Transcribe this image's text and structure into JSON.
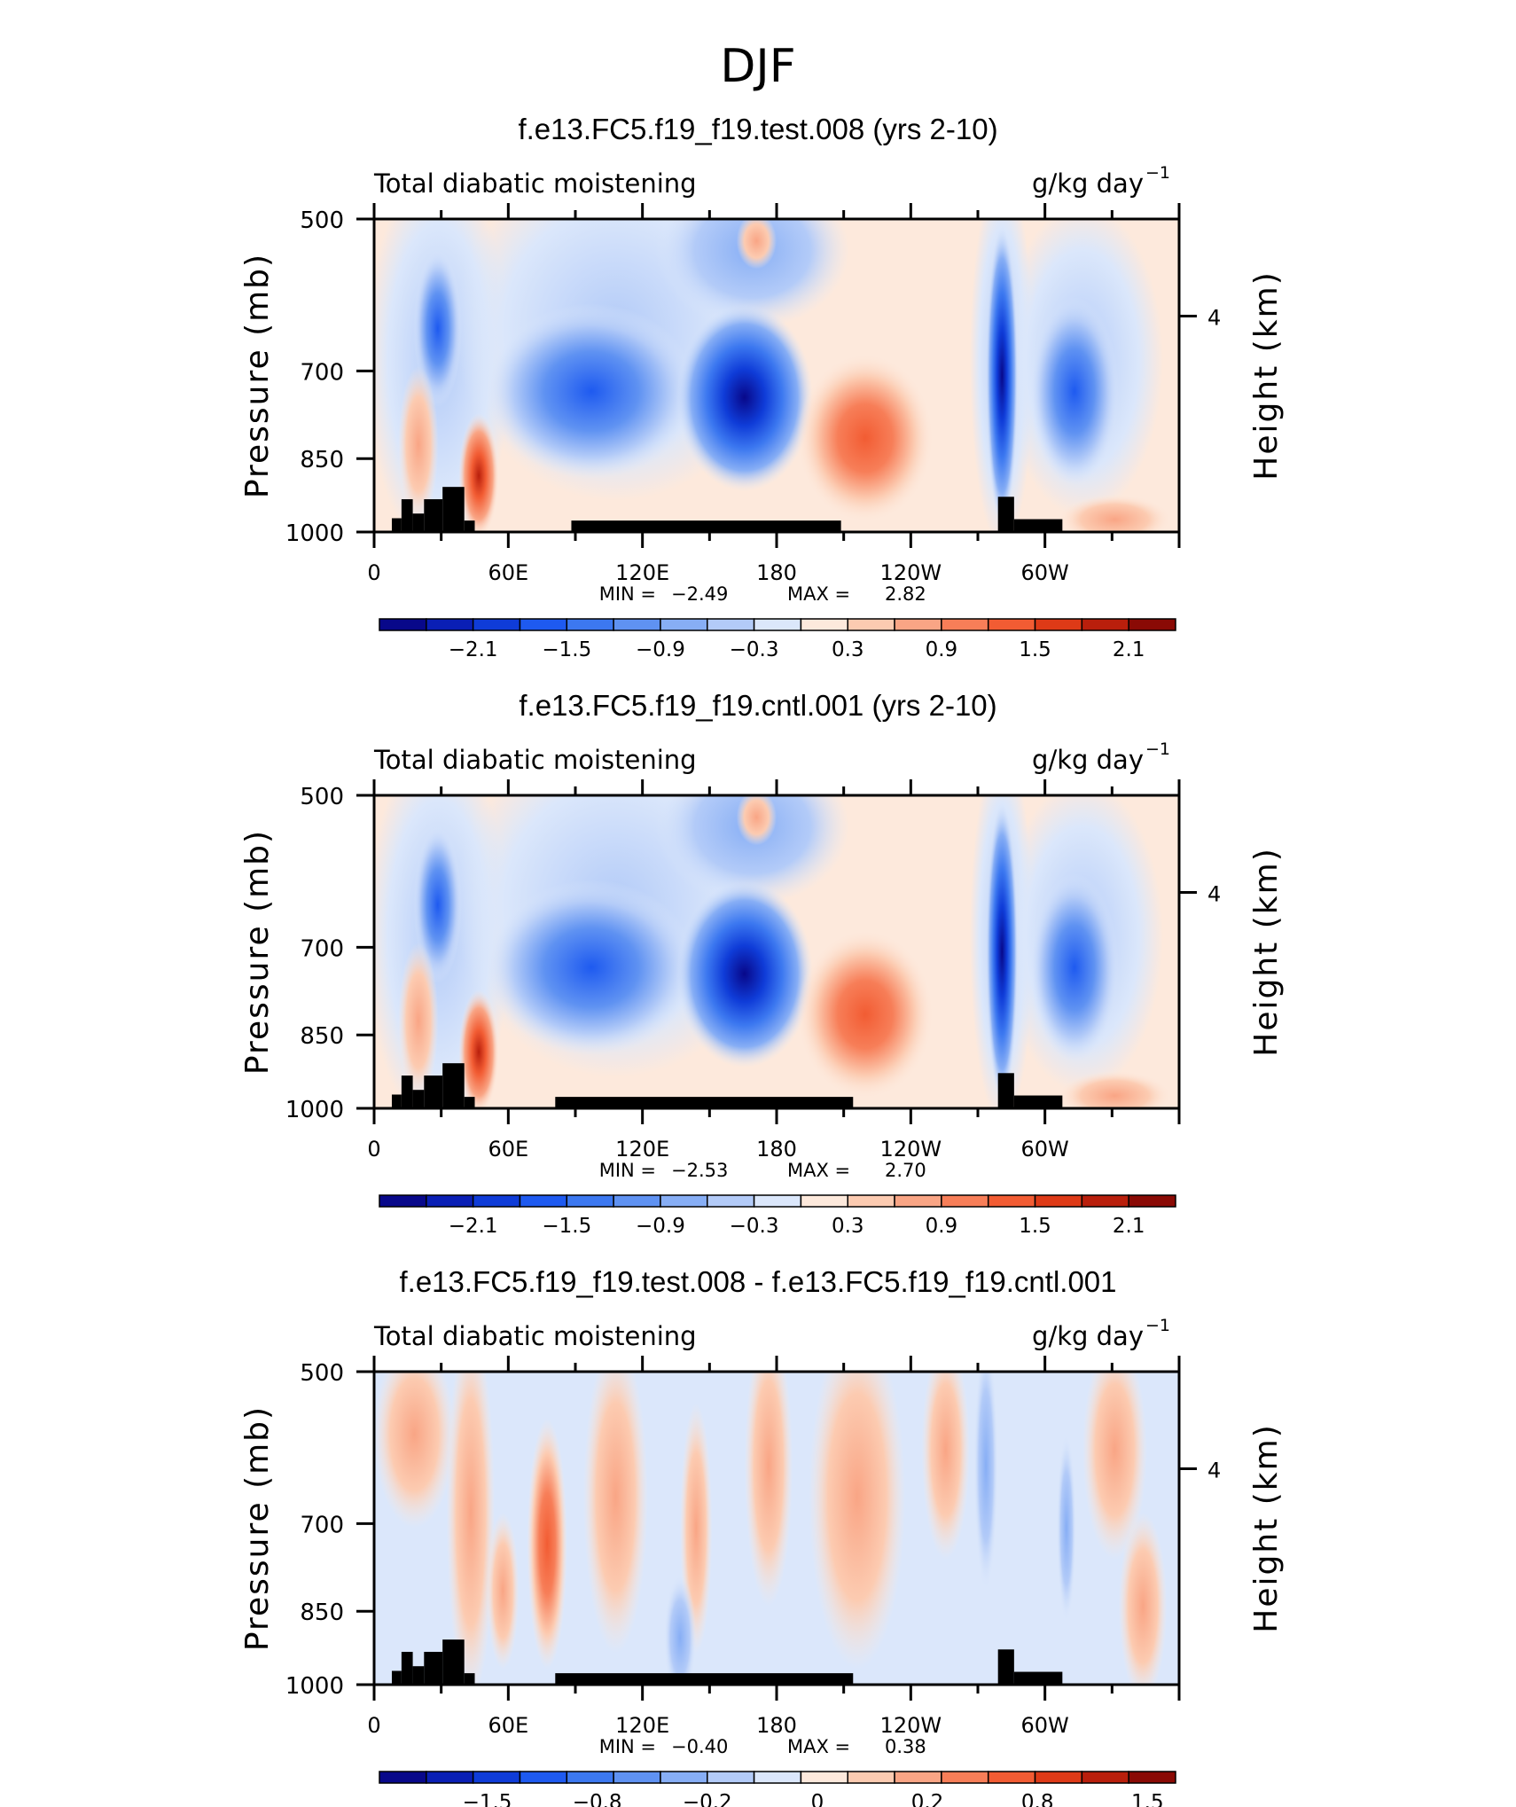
{
  "page": {
    "season_title": "DJF"
  },
  "chart_data": [
    {
      "type": "heatmap",
      "title": "f.e13.FC5.f19_f19.test.008 (yrs 2-10)",
      "left_string": "Total diabatic moistening",
      "right_string": "g/kg day",
      "right_exp": "−1",
      "ylabel": "Pressure (mb)",
      "ylabel_right": "Height (km)",
      "x_ticks": [
        "0",
        "60E",
        "120E",
        "180",
        "120W",
        "60W"
      ],
      "y_ticks": [
        "500",
        "700",
        "850",
        "1000"
      ],
      "y_ticks_right": [
        "4"
      ],
      "ylim": [
        1000,
        500
      ],
      "min_label": "MIN =",
      "min_value": "−2.49",
      "max_label": "MAX =",
      "max_value": "2.82",
      "levels": [
        -2.4,
        -2.1,
        -1.8,
        -1.5,
        -1.2,
        -0.9,
        -0.6,
        -0.3,
        0,
        0.3,
        0.6,
        0.9,
        1.2,
        1.5,
        1.8,
        2.1,
        2.4
      ],
      "colorbar_labels": [
        "−2.1",
        "−1.5",
        "−0.9",
        "−0.3",
        "0.3",
        "0.9",
        "1.5",
        "2.1"
      ],
      "colors": [
        "#08088a",
        "#0a1fb5",
        "#0f3cd8",
        "#1e5af0",
        "#3c78f0",
        "#5f92f2",
        "#87aef5",
        "#b3cbf8",
        "#dbe7fb",
        "#fde9dc",
        "#fccbb1",
        "#f9a585",
        "#f77e58",
        "#f25c33",
        "#de3a17",
        "#b91f0c",
        "#8a0a05"
      ]
    },
    {
      "type": "heatmap",
      "title": "f.e13.FC5.f19_f19.cntl.001 (yrs 2-10)",
      "left_string": "Total diabatic moistening",
      "right_string": "g/kg day",
      "right_exp": "−1",
      "ylabel": "Pressure (mb)",
      "ylabel_right": "Height (km)",
      "x_ticks": [
        "0",
        "60E",
        "120E",
        "180",
        "120W",
        "60W"
      ],
      "y_ticks": [
        "500",
        "700",
        "850",
        "1000"
      ],
      "y_ticks_right": [
        "4"
      ],
      "ylim": [
        1000,
        500
      ],
      "min_label": "MIN =",
      "min_value": "−2.53",
      "max_label": "MAX =",
      "max_value": "2.70",
      "levels": [
        -2.4,
        -2.1,
        -1.8,
        -1.5,
        -1.2,
        -0.9,
        -0.6,
        -0.3,
        0,
        0.3,
        0.6,
        0.9,
        1.2,
        1.5,
        1.8,
        2.1,
        2.4
      ],
      "colorbar_labels": [
        "−2.1",
        "−1.5",
        "−0.9",
        "−0.3",
        "0.3",
        "0.9",
        "1.5",
        "2.1"
      ],
      "colors": [
        "#08088a",
        "#0a1fb5",
        "#0f3cd8",
        "#1e5af0",
        "#3c78f0",
        "#5f92f2",
        "#87aef5",
        "#b3cbf8",
        "#dbe7fb",
        "#fde9dc",
        "#fccbb1",
        "#f9a585",
        "#f77e58",
        "#f25c33",
        "#de3a17",
        "#b91f0c",
        "#8a0a05"
      ]
    },
    {
      "type": "heatmap",
      "title": "f.e13.FC5.f19_f19.test.008 - f.e13.FC5.f19_f19.cntl.001",
      "left_string": "Total diabatic moistening",
      "right_string": "g/kg day",
      "right_exp": "−1",
      "ylabel": "Pressure (mb)",
      "ylabel_right": "Height (km)",
      "x_ticks": [
        "0",
        "60E",
        "120E",
        "180",
        "120W",
        "60W"
      ],
      "y_ticks": [
        "500",
        "700",
        "850",
        "1000"
      ],
      "y_ticks_right": [
        "4"
      ],
      "ylim": [
        1000,
        500
      ],
      "min_label": "MIN =",
      "min_value": "−0.40",
      "max_label": "MAX =",
      "max_value": "0.38",
      "levels": [
        -2.0,
        -1.5,
        -1.2,
        -1.0,
        -0.8,
        -0.6,
        -0.4,
        -0.2,
        -0.1,
        0,
        0.1,
        0.2,
        0.4,
        0.6,
        0.8,
        1.0,
        1.2,
        1.5,
        2.0
      ],
      "colorbar_labels": [
        "−1.5",
        "−0.8",
        "−0.2",
        "0",
        "0.2",
        "0.8",
        "1.5"
      ],
      "colors": [
        "#08088a",
        "#0a1fb5",
        "#0f3cd8",
        "#1e5af0",
        "#3c78f0",
        "#5f92f2",
        "#87aef5",
        "#b3cbf8",
        "#dbe7fb",
        "#fde9dc",
        "#fccbb1",
        "#f9a585",
        "#f77e58",
        "#f25c33",
        "#de3a17",
        "#b91f0c",
        "#8a0a05"
      ]
    }
  ]
}
